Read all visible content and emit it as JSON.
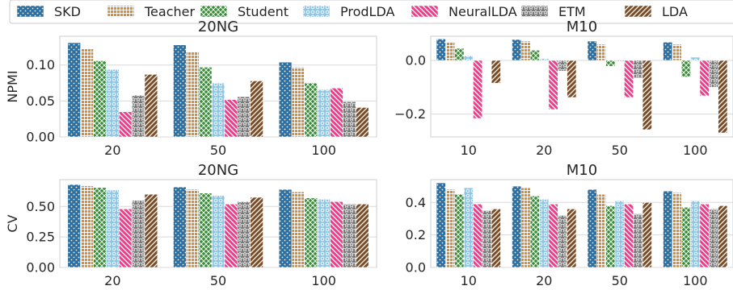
{
  "legend": {
    "placement": "top",
    "entries": [
      {
        "name": "SKD",
        "color": "#2f6f9f",
        "pattern": "dots"
      },
      {
        "name": "Teacher",
        "color": "#e08a2c",
        "pattern": "grid"
      },
      {
        "name": "Student",
        "color": "#3a8c3a",
        "pattern": "crosshatch"
      },
      {
        "name": "ProdLDA",
        "color": "#8ec6e8",
        "pattern": "circles"
      },
      {
        "name": "NeuralLDA",
        "color": "#e83e8c",
        "pattern": "backslash"
      },
      {
        "name": "ETM",
        "color": "#7a7a7a",
        "pattern": "stars"
      },
      {
        "name": "LDA",
        "color": "#7b4a26",
        "pattern": "slash"
      }
    ]
  },
  "chart_data": [
    {
      "type": "bar",
      "title": "20NG",
      "xlabel": "",
      "ylabel": "NPMI",
      "categories": [
        "20",
        "50",
        "100"
      ],
      "ylim": [
        0,
        0.14
      ],
      "yticks": [
        0.0,
        0.05,
        0.1
      ],
      "ytick_labels": [
        "0.00",
        "0.05",
        "0.10"
      ],
      "grid": true,
      "series": [
        {
          "name": "SKD",
          "values": [
            0.131,
            0.128,
            0.104
          ]
        },
        {
          "name": "Teacher",
          "values": [
            0.123,
            0.119,
            0.097
          ]
        },
        {
          "name": "Student",
          "values": [
            0.106,
            0.097,
            0.075
          ]
        },
        {
          "name": "ProdLDA",
          "values": [
            0.094,
            0.075,
            0.066
          ]
        },
        {
          "name": "NeuralLDA",
          "values": [
            0.035,
            0.052,
            0.068
          ]
        },
        {
          "name": "ETM",
          "values": [
            0.058,
            0.056,
            0.049
          ]
        },
        {
          "name": "LDA",
          "values": [
            0.087,
            0.078,
            0.041
          ]
        }
      ]
    },
    {
      "type": "bar",
      "title": "M10",
      "xlabel": "",
      "ylabel": "",
      "categories": [
        "10",
        "20",
        "50",
        "100"
      ],
      "ylim": [
        -0.285,
        0.09
      ],
      "yticks": [
        0.0,
        -0.2
      ],
      "ytick_labels": [
        "0.0",
        "−0.2"
      ],
      "grid": true,
      "series": [
        {
          "name": "SKD",
          "values": [
            0.08,
            0.078,
            0.072,
            0.068
          ]
        },
        {
          "name": "Teacher",
          "values": [
            0.07,
            0.072,
            0.06,
            0.06
          ]
        },
        {
          "name": "Student",
          "values": [
            0.045,
            0.038,
            -0.022,
            -0.062
          ]
        },
        {
          "name": "ProdLDA",
          "values": [
            0.017,
            0.007,
            -0.004,
            0.012
          ]
        },
        {
          "name": "NeuralLDA",
          "values": [
            -0.216,
            -0.183,
            -0.138,
            -0.132
          ]
        },
        {
          "name": "ETM",
          "values": [
            -0.002,
            -0.04,
            -0.065,
            -0.1
          ]
        },
        {
          "name": "LDA",
          "values": [
            -0.085,
            -0.138,
            -0.258,
            -0.27
          ]
        }
      ]
    },
    {
      "type": "bar",
      "title": "20NG",
      "xlabel": "",
      "ylabel": "CV",
      "categories": [
        "20",
        "50",
        "100"
      ],
      "ylim": [
        0,
        0.72
      ],
      "yticks": [
        0.0,
        0.25,
        0.5
      ],
      "ytick_labels": [
        "0.00",
        "0.25",
        "0.50"
      ],
      "grid": true,
      "series": [
        {
          "name": "SKD",
          "values": [
            0.68,
            0.66,
            0.64
          ]
        },
        {
          "name": "Teacher",
          "values": [
            0.67,
            0.64,
            0.62
          ]
        },
        {
          "name": "Student",
          "values": [
            0.655,
            0.61,
            0.57
          ]
        },
        {
          "name": "ProdLDA",
          "values": [
            0.635,
            0.59,
            0.56
          ]
        },
        {
          "name": "NeuralLDA",
          "values": [
            0.48,
            0.52,
            0.54
          ]
        },
        {
          "name": "ETM",
          "values": [
            0.55,
            0.54,
            0.52
          ]
        },
        {
          "name": "LDA",
          "values": [
            0.6,
            0.575,
            0.52
          ]
        }
      ]
    },
    {
      "type": "bar",
      "title": "M10",
      "xlabel": "",
      "ylabel": "",
      "categories": [
        "10",
        "20",
        "50",
        "100"
      ],
      "ylim": [
        0,
        0.54
      ],
      "yticks": [
        0.0,
        0.2,
        0.4
      ],
      "ytick_labels": [
        "0.0",
        "0.2",
        "0.4"
      ],
      "grid": true,
      "series": [
        {
          "name": "SKD",
          "values": [
            0.52,
            0.5,
            0.48,
            0.47
          ]
        },
        {
          "name": "Teacher",
          "values": [
            0.48,
            0.49,
            0.45,
            0.46
          ]
        },
        {
          "name": "Student",
          "values": [
            0.45,
            0.44,
            0.38,
            0.37
          ]
        },
        {
          "name": "ProdLDA",
          "values": [
            0.49,
            0.42,
            0.41,
            0.41
          ]
        },
        {
          "name": "NeuralLDA",
          "values": [
            0.39,
            0.39,
            0.39,
            0.39
          ]
        },
        {
          "name": "ETM",
          "values": [
            0.35,
            0.32,
            0.33,
            0.36
          ]
        },
        {
          "name": "LDA",
          "values": [
            0.36,
            0.36,
            0.4,
            0.38
          ]
        }
      ]
    }
  ]
}
